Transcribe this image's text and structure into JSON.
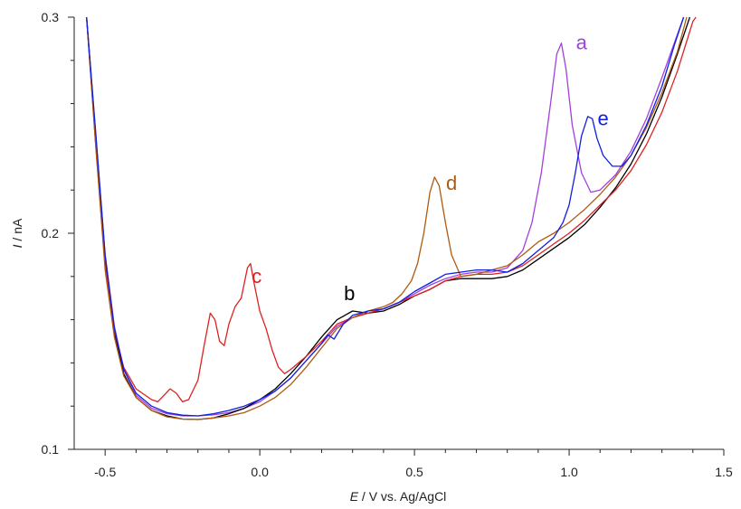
{
  "chart_data": {
    "type": "line",
    "xlabel": {
      "italic": "E",
      "rest": " / V vs. Ag/AgCl"
    },
    "ylabel": {
      "italic": "I",
      "rest": " / nA"
    },
    "xlim": [
      -0.6,
      1.5
    ],
    "ylim": [
      0.1,
      0.3
    ],
    "x_ticks": [
      -0.5,
      0.0,
      0.5,
      1.0,
      1.5
    ],
    "x_tick_labels": [
      "-0.5",
      "0.0",
      "0.5",
      "1.0",
      "1.5"
    ],
    "y_ticks": [
      0.1,
      0.2,
      0.3
    ],
    "y_tick_labels": [
      "0.1",
      "0.2",
      "0.3"
    ],
    "grid": false,
    "series": [
      {
        "name": "a",
        "color": "#a040e0",
        "label_at": [
          1.04,
          0.288
        ],
        "points": [
          [
            -0.56,
            0.3
          ],
          [
            -0.53,
            0.245
          ],
          [
            -0.5,
            0.19
          ],
          [
            -0.47,
            0.157
          ],
          [
            -0.44,
            0.137
          ],
          [
            -0.4,
            0.125
          ],
          [
            -0.35,
            0.119
          ],
          [
            -0.3,
            0.1165
          ],
          [
            -0.25,
            0.1155
          ],
          [
            -0.2,
            0.1155
          ],
          [
            -0.15,
            0.116
          ],
          [
            -0.1,
            0.117
          ],
          [
            -0.05,
            0.119
          ],
          [
            0.0,
            0.122
          ],
          [
            0.05,
            0.127
          ],
          [
            0.1,
            0.133
          ],
          [
            0.15,
            0.141
          ],
          [
            0.2,
            0.149
          ],
          [
            0.25,
            0.157
          ],
          [
            0.3,
            0.161
          ],
          [
            0.35,
            0.163
          ],
          [
            0.4,
            0.165
          ],
          [
            0.45,
            0.168
          ],
          [
            0.5,
            0.172
          ],
          [
            0.55,
            0.176
          ],
          [
            0.6,
            0.179
          ],
          [
            0.65,
            0.181
          ],
          [
            0.7,
            0.182
          ],
          [
            0.75,
            0.182
          ],
          [
            0.8,
            0.184
          ],
          [
            0.85,
            0.192
          ],
          [
            0.88,
            0.205
          ],
          [
            0.91,
            0.228
          ],
          [
            0.94,
            0.26
          ],
          [
            0.96,
            0.283
          ],
          [
            0.975,
            0.288
          ],
          [
            0.99,
            0.276
          ],
          [
            1.01,
            0.25
          ],
          [
            1.04,
            0.228
          ],
          [
            1.07,
            0.219
          ],
          [
            1.1,
            0.22
          ],
          [
            1.15,
            0.227
          ],
          [
            1.2,
            0.238
          ],
          [
            1.25,
            0.253
          ],
          [
            1.3,
            0.272
          ],
          [
            1.35,
            0.292
          ],
          [
            1.37,
            0.3
          ]
        ]
      },
      {
        "name": "b",
        "color": "#000000",
        "label_at": [
          0.29,
          0.172
        ],
        "points": [
          [
            -0.56,
            0.3
          ],
          [
            -0.53,
            0.243
          ],
          [
            -0.5,
            0.187
          ],
          [
            -0.47,
            0.154
          ],
          [
            -0.44,
            0.135
          ],
          [
            -0.4,
            0.124
          ],
          [
            -0.35,
            0.118
          ],
          [
            -0.3,
            0.1155
          ],
          [
            -0.25,
            0.114
          ],
          [
            -0.2,
            0.1138
          ],
          [
            -0.15,
            0.1145
          ],
          [
            -0.1,
            0.1165
          ],
          [
            -0.05,
            0.119
          ],
          [
            0.0,
            0.123
          ],
          [
            0.05,
            0.128
          ],
          [
            0.1,
            0.135
          ],
          [
            0.15,
            0.143
          ],
          [
            0.2,
            0.152
          ],
          [
            0.25,
            0.16
          ],
          [
            0.3,
            0.164
          ],
          [
            0.35,
            0.163
          ],
          [
            0.4,
            0.164
          ],
          [
            0.45,
            0.167
          ],
          [
            0.5,
            0.171
          ],
          [
            0.55,
            0.174
          ],
          [
            0.6,
            0.178
          ],
          [
            0.65,
            0.179
          ],
          [
            0.7,
            0.179
          ],
          [
            0.75,
            0.179
          ],
          [
            0.8,
            0.18
          ],
          [
            0.85,
            0.183
          ],
          [
            0.9,
            0.188
          ],
          [
            0.95,
            0.193
          ],
          [
            1.0,
            0.198
          ],
          [
            1.05,
            0.204
          ],
          [
            1.1,
            0.212
          ],
          [
            1.15,
            0.221
          ],
          [
            1.2,
            0.232
          ],
          [
            1.25,
            0.246
          ],
          [
            1.3,
            0.263
          ],
          [
            1.35,
            0.283
          ],
          [
            1.39,
            0.3
          ]
        ]
      },
      {
        "name": "c",
        "color": "#e02020",
        "label_at": [
          -0.01,
          0.18
        ],
        "points": [
          [
            -0.56,
            0.3
          ],
          [
            -0.53,
            0.24
          ],
          [
            -0.5,
            0.185
          ],
          [
            -0.47,
            0.155
          ],
          [
            -0.44,
            0.138
          ],
          [
            -0.4,
            0.128
          ],
          [
            -0.35,
            0.123
          ],
          [
            -0.33,
            0.122
          ],
          [
            -0.31,
            0.125
          ],
          [
            -0.29,
            0.128
          ],
          [
            -0.27,
            0.126
          ],
          [
            -0.25,
            0.122
          ],
          [
            -0.23,
            0.123
          ],
          [
            -0.2,
            0.132
          ],
          [
            -0.18,
            0.148
          ],
          [
            -0.16,
            0.163
          ],
          [
            -0.145,
            0.16
          ],
          [
            -0.13,
            0.15
          ],
          [
            -0.115,
            0.148
          ],
          [
            -0.1,
            0.158
          ],
          [
            -0.08,
            0.166
          ],
          [
            -0.06,
            0.17
          ],
          [
            -0.04,
            0.184
          ],
          [
            -0.03,
            0.186
          ],
          [
            -0.02,
            0.178
          ],
          [
            0.0,
            0.164
          ],
          [
            0.02,
            0.156
          ],
          [
            0.04,
            0.146
          ],
          [
            0.06,
            0.138
          ],
          [
            0.08,
            0.135
          ],
          [
            0.1,
            0.137
          ],
          [
            0.15,
            0.143
          ],
          [
            0.2,
            0.15
          ],
          [
            0.25,
            0.158
          ],
          [
            0.3,
            0.161
          ],
          [
            0.35,
            0.163
          ],
          [
            0.4,
            0.165
          ],
          [
            0.45,
            0.168
          ],
          [
            0.5,
            0.171
          ],
          [
            0.55,
            0.174
          ],
          [
            0.6,
            0.178
          ],
          [
            0.65,
            0.18
          ],
          [
            0.7,
            0.181
          ],
          [
            0.75,
            0.181
          ],
          [
            0.8,
            0.182
          ],
          [
            0.85,
            0.185
          ],
          [
            0.9,
            0.19
          ],
          [
            0.95,
            0.195
          ],
          [
            1.0,
            0.2
          ],
          [
            1.05,
            0.206
          ],
          [
            1.1,
            0.213
          ],
          [
            1.15,
            0.22
          ],
          [
            1.2,
            0.229
          ],
          [
            1.25,
            0.241
          ],
          [
            1.3,
            0.256
          ],
          [
            1.35,
            0.275
          ],
          [
            1.4,
            0.298
          ],
          [
            1.41,
            0.3
          ]
        ]
      },
      {
        "name": "d",
        "color": "#b05a10",
        "label_at": [
          0.62,
          0.223
        ],
        "points": [
          [
            -0.56,
            0.3
          ],
          [
            -0.53,
            0.24
          ],
          [
            -0.5,
            0.183
          ],
          [
            -0.47,
            0.152
          ],
          [
            -0.44,
            0.134
          ],
          [
            -0.4,
            0.124
          ],
          [
            -0.35,
            0.118
          ],
          [
            -0.3,
            0.115
          ],
          [
            -0.25,
            0.114
          ],
          [
            -0.2,
            0.1138
          ],
          [
            -0.15,
            0.1145
          ],
          [
            -0.1,
            0.1155
          ],
          [
            -0.05,
            0.117
          ],
          [
            0.0,
            0.12
          ],
          [
            0.05,
            0.124
          ],
          [
            0.1,
            0.13
          ],
          [
            0.15,
            0.138
          ],
          [
            0.2,
            0.147
          ],
          [
            0.25,
            0.156
          ],
          [
            0.3,
            0.161
          ],
          [
            0.35,
            0.164
          ],
          [
            0.4,
            0.166
          ],
          [
            0.43,
            0.168
          ],
          [
            0.46,
            0.172
          ],
          [
            0.49,
            0.178
          ],
          [
            0.51,
            0.186
          ],
          [
            0.53,
            0.2
          ],
          [
            0.55,
            0.219
          ],
          [
            0.565,
            0.226
          ],
          [
            0.58,
            0.222
          ],
          [
            0.6,
            0.205
          ],
          [
            0.62,
            0.19
          ],
          [
            0.65,
            0.18
          ],
          [
            0.7,
            0.181
          ],
          [
            0.75,
            0.183
          ],
          [
            0.8,
            0.185
          ],
          [
            0.85,
            0.19
          ],
          [
            0.9,
            0.196
          ],
          [
            0.95,
            0.2
          ],
          [
            1.0,
            0.205
          ],
          [
            1.05,
            0.211
          ],
          [
            1.1,
            0.218
          ],
          [
            1.15,
            0.226
          ],
          [
            1.2,
            0.236
          ],
          [
            1.25,
            0.249
          ],
          [
            1.3,
            0.265
          ],
          [
            1.35,
            0.284
          ],
          [
            1.38,
            0.3
          ]
        ]
      },
      {
        "name": "e",
        "color": "#1020e0",
        "label_at": [
          1.11,
          0.253
        ],
        "points": [
          [
            -0.56,
            0.3
          ],
          [
            -0.53,
            0.246
          ],
          [
            -0.5,
            0.19
          ],
          [
            -0.47,
            0.156
          ],
          [
            -0.44,
            0.137
          ],
          [
            -0.4,
            0.126
          ],
          [
            -0.35,
            0.12
          ],
          [
            -0.3,
            0.117
          ],
          [
            -0.25,
            0.1158
          ],
          [
            -0.2,
            0.1155
          ],
          [
            -0.15,
            0.1165
          ],
          [
            -0.1,
            0.118
          ],
          [
            -0.05,
            0.12
          ],
          [
            0.0,
            0.123
          ],
          [
            0.05,
            0.127
          ],
          [
            0.1,
            0.133
          ],
          [
            0.15,
            0.141
          ],
          [
            0.2,
            0.149
          ],
          [
            0.22,
            0.153
          ],
          [
            0.24,
            0.151
          ],
          [
            0.27,
            0.158
          ],
          [
            0.3,
            0.162
          ],
          [
            0.35,
            0.164
          ],
          [
            0.4,
            0.165
          ],
          [
            0.45,
            0.168
          ],
          [
            0.5,
            0.173
          ],
          [
            0.55,
            0.177
          ],
          [
            0.6,
            0.181
          ],
          [
            0.65,
            0.182
          ],
          [
            0.7,
            0.183
          ],
          [
            0.75,
            0.183
          ],
          [
            0.8,
            0.182
          ],
          [
            0.85,
            0.186
          ],
          [
            0.9,
            0.192
          ],
          [
            0.95,
            0.198
          ],
          [
            0.98,
            0.205
          ],
          [
            1.0,
            0.213
          ],
          [
            1.02,
            0.228
          ],
          [
            1.04,
            0.245
          ],
          [
            1.06,
            0.254
          ],
          [
            1.075,
            0.253
          ],
          [
            1.09,
            0.244
          ],
          [
            1.11,
            0.236
          ],
          [
            1.14,
            0.231
          ],
          [
            1.17,
            0.231
          ],
          [
            1.2,
            0.236
          ],
          [
            1.25,
            0.25
          ],
          [
            1.3,
            0.268
          ],
          [
            1.34,
            0.287
          ],
          [
            1.37,
            0.3
          ]
        ]
      }
    ]
  }
}
